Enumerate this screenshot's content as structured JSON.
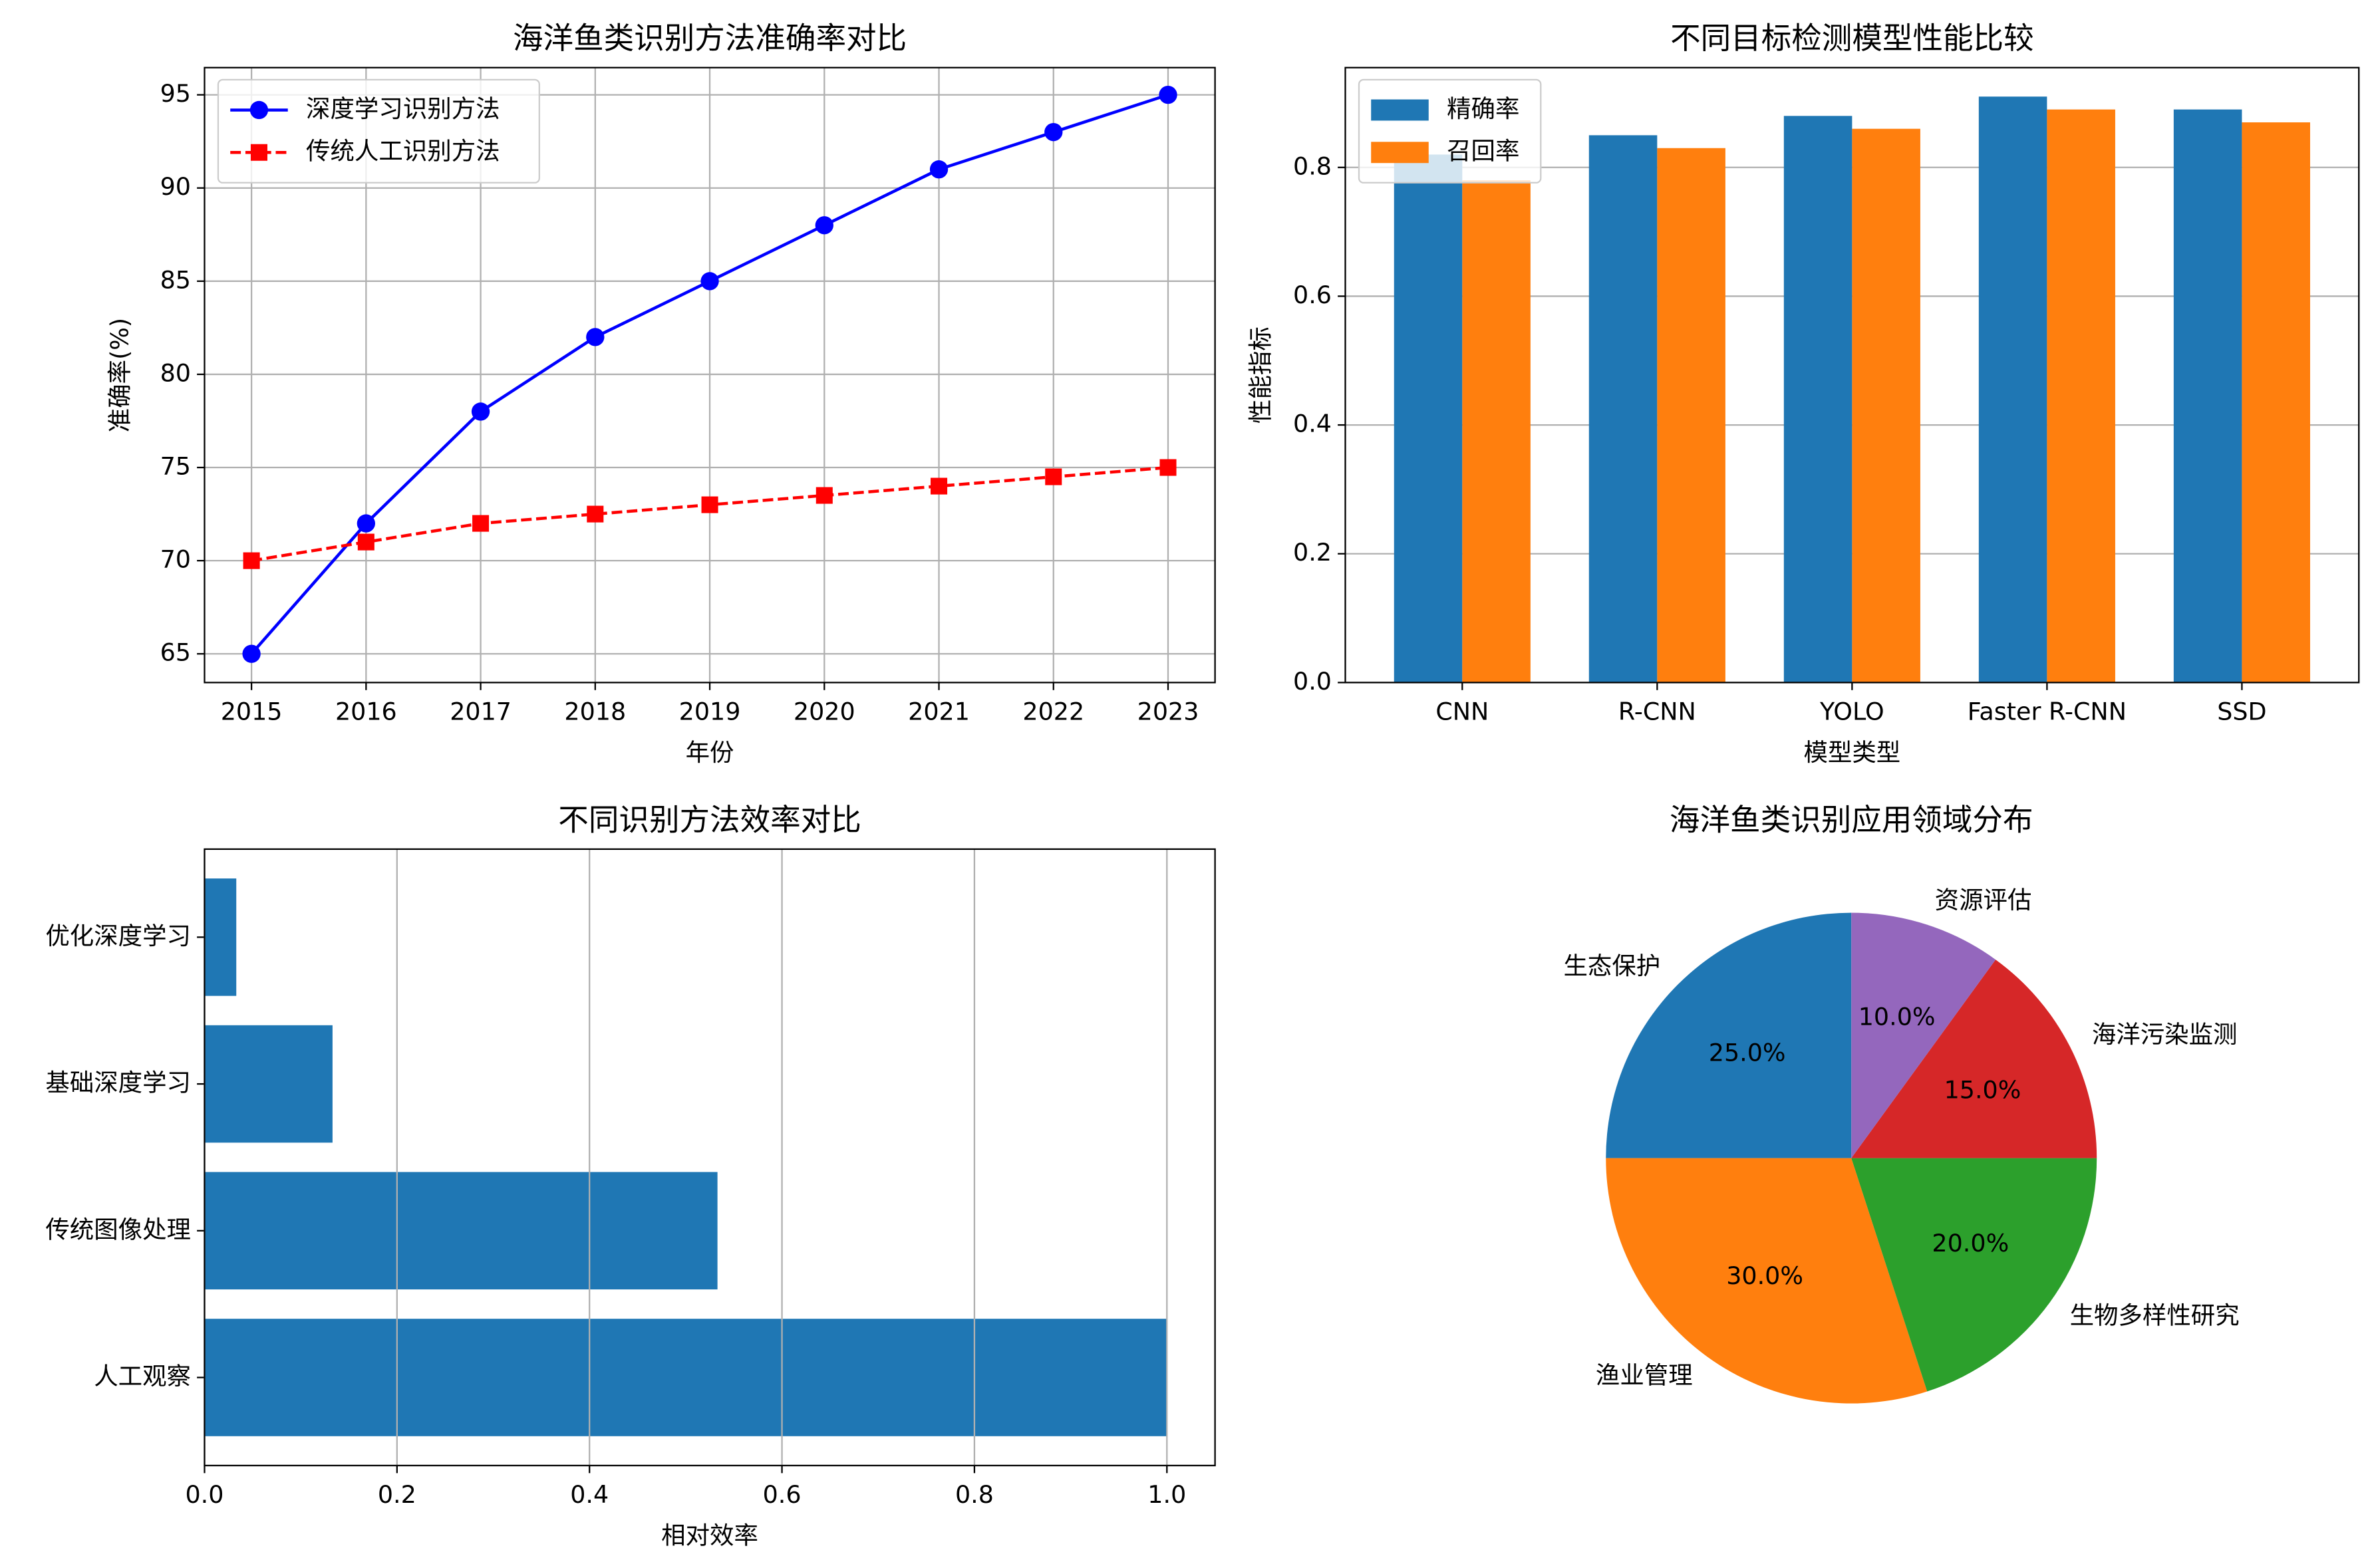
{
  "chart_data": [
    {
      "type": "line",
      "title": "海洋鱼类识别方法准确率对比",
      "xlabel": "年份",
      "ylabel": "准确率(%)",
      "x": [
        2015,
        2016,
        2017,
        2018,
        2019,
        2020,
        2021,
        2022,
        2023
      ],
      "series": [
        {
          "name": "深度学习识别方法",
          "color": "#0000ff",
          "marker": "circle",
          "linestyle": "solid",
          "values": [
            65,
            72,
            78,
            82,
            85,
            88,
            91,
            93,
            95
          ]
        },
        {
          "name": "传统人工识别方法",
          "color": "#ff0000",
          "marker": "square",
          "linestyle": "dashed",
          "values": [
            70,
            71,
            72,
            72.5,
            73,
            73.5,
            74,
            74.5,
            75
          ]
        }
      ],
      "xlim": [
        2014.59,
        2023.41
      ],
      "xticks": [
        2015,
        2016,
        2017,
        2018,
        2019,
        2020,
        2021,
        2022,
        2023
      ],
      "ylim": [
        63.46,
        96.46
      ],
      "yticks": [
        65,
        70,
        75,
        80,
        85,
        90,
        95
      ],
      "grid": true,
      "legend": "upper left"
    },
    {
      "type": "bar",
      "title": "不同目标检测模型性能比较",
      "xlabel": "模型类型",
      "ylabel": "性能指标",
      "categories": [
        "CNN",
        "R-CNN",
        "YOLO",
        "Faster R-CNN",
        "SSD"
      ],
      "series": [
        {
          "name": "精确率",
          "color": "#1f77b4",
          "values": [
            0.82,
            0.85,
            0.88,
            0.91,
            0.89
          ]
        },
        {
          "name": "召回率",
          "color": "#ff7f0e",
          "values": [
            0.78,
            0.83,
            0.86,
            0.89,
            0.87
          ]
        }
      ],
      "ylim": [
        0,
        0.955
      ],
      "yticks": [
        {
          "value": 0,
          "label": "0.0"
        },
        {
          "value": 0.2,
          "label": "0.2"
        },
        {
          "value": 0.4,
          "label": "0.4"
        },
        {
          "value": 0.6,
          "label": "0.6"
        },
        {
          "value": 0.8,
          "label": "0.8"
        }
      ],
      "grid": true,
      "legend": "upper left"
    },
    {
      "type": "barh",
      "title": "不同识别方法效率对比",
      "xlabel": "相对效率",
      "categories": [
        "人工观察",
        "传统图像处理",
        "基础深度学习",
        "优化深度学习"
      ],
      "values": [
        1.0,
        0.533,
        0.133,
        0.033
      ],
      "color": "#1f77b4",
      "xlim": [
        0,
        1.05
      ],
      "xticks": [
        {
          "value": 0,
          "label": "0.0"
        },
        {
          "value": 0.2,
          "label": "0.2"
        },
        {
          "value": 0.4,
          "label": "0.4"
        },
        {
          "value": 0.6,
          "label": "0.6"
        },
        {
          "value": 0.8,
          "label": "0.8"
        },
        {
          "value": 1.0,
          "label": "1.0"
        }
      ],
      "grid": true
    },
    {
      "type": "pie",
      "title": "海洋鱼类识别应用领域分布",
      "categories": [
        "生态保护",
        "渔业管理",
        "生物多样性研究",
        "海洋污染监测",
        "资源评估"
      ],
      "values": [
        25,
        30,
        20,
        15,
        10
      ],
      "value_labels": [
        "25.0%",
        "30.0%",
        "20.0%",
        "15.0%",
        "10.0%"
      ],
      "colors": [
        "#1f77b4",
        "#ff7f0e",
        "#2ca02c",
        "#d62728",
        "#9467bd"
      ],
      "startangle": 90
    }
  ]
}
